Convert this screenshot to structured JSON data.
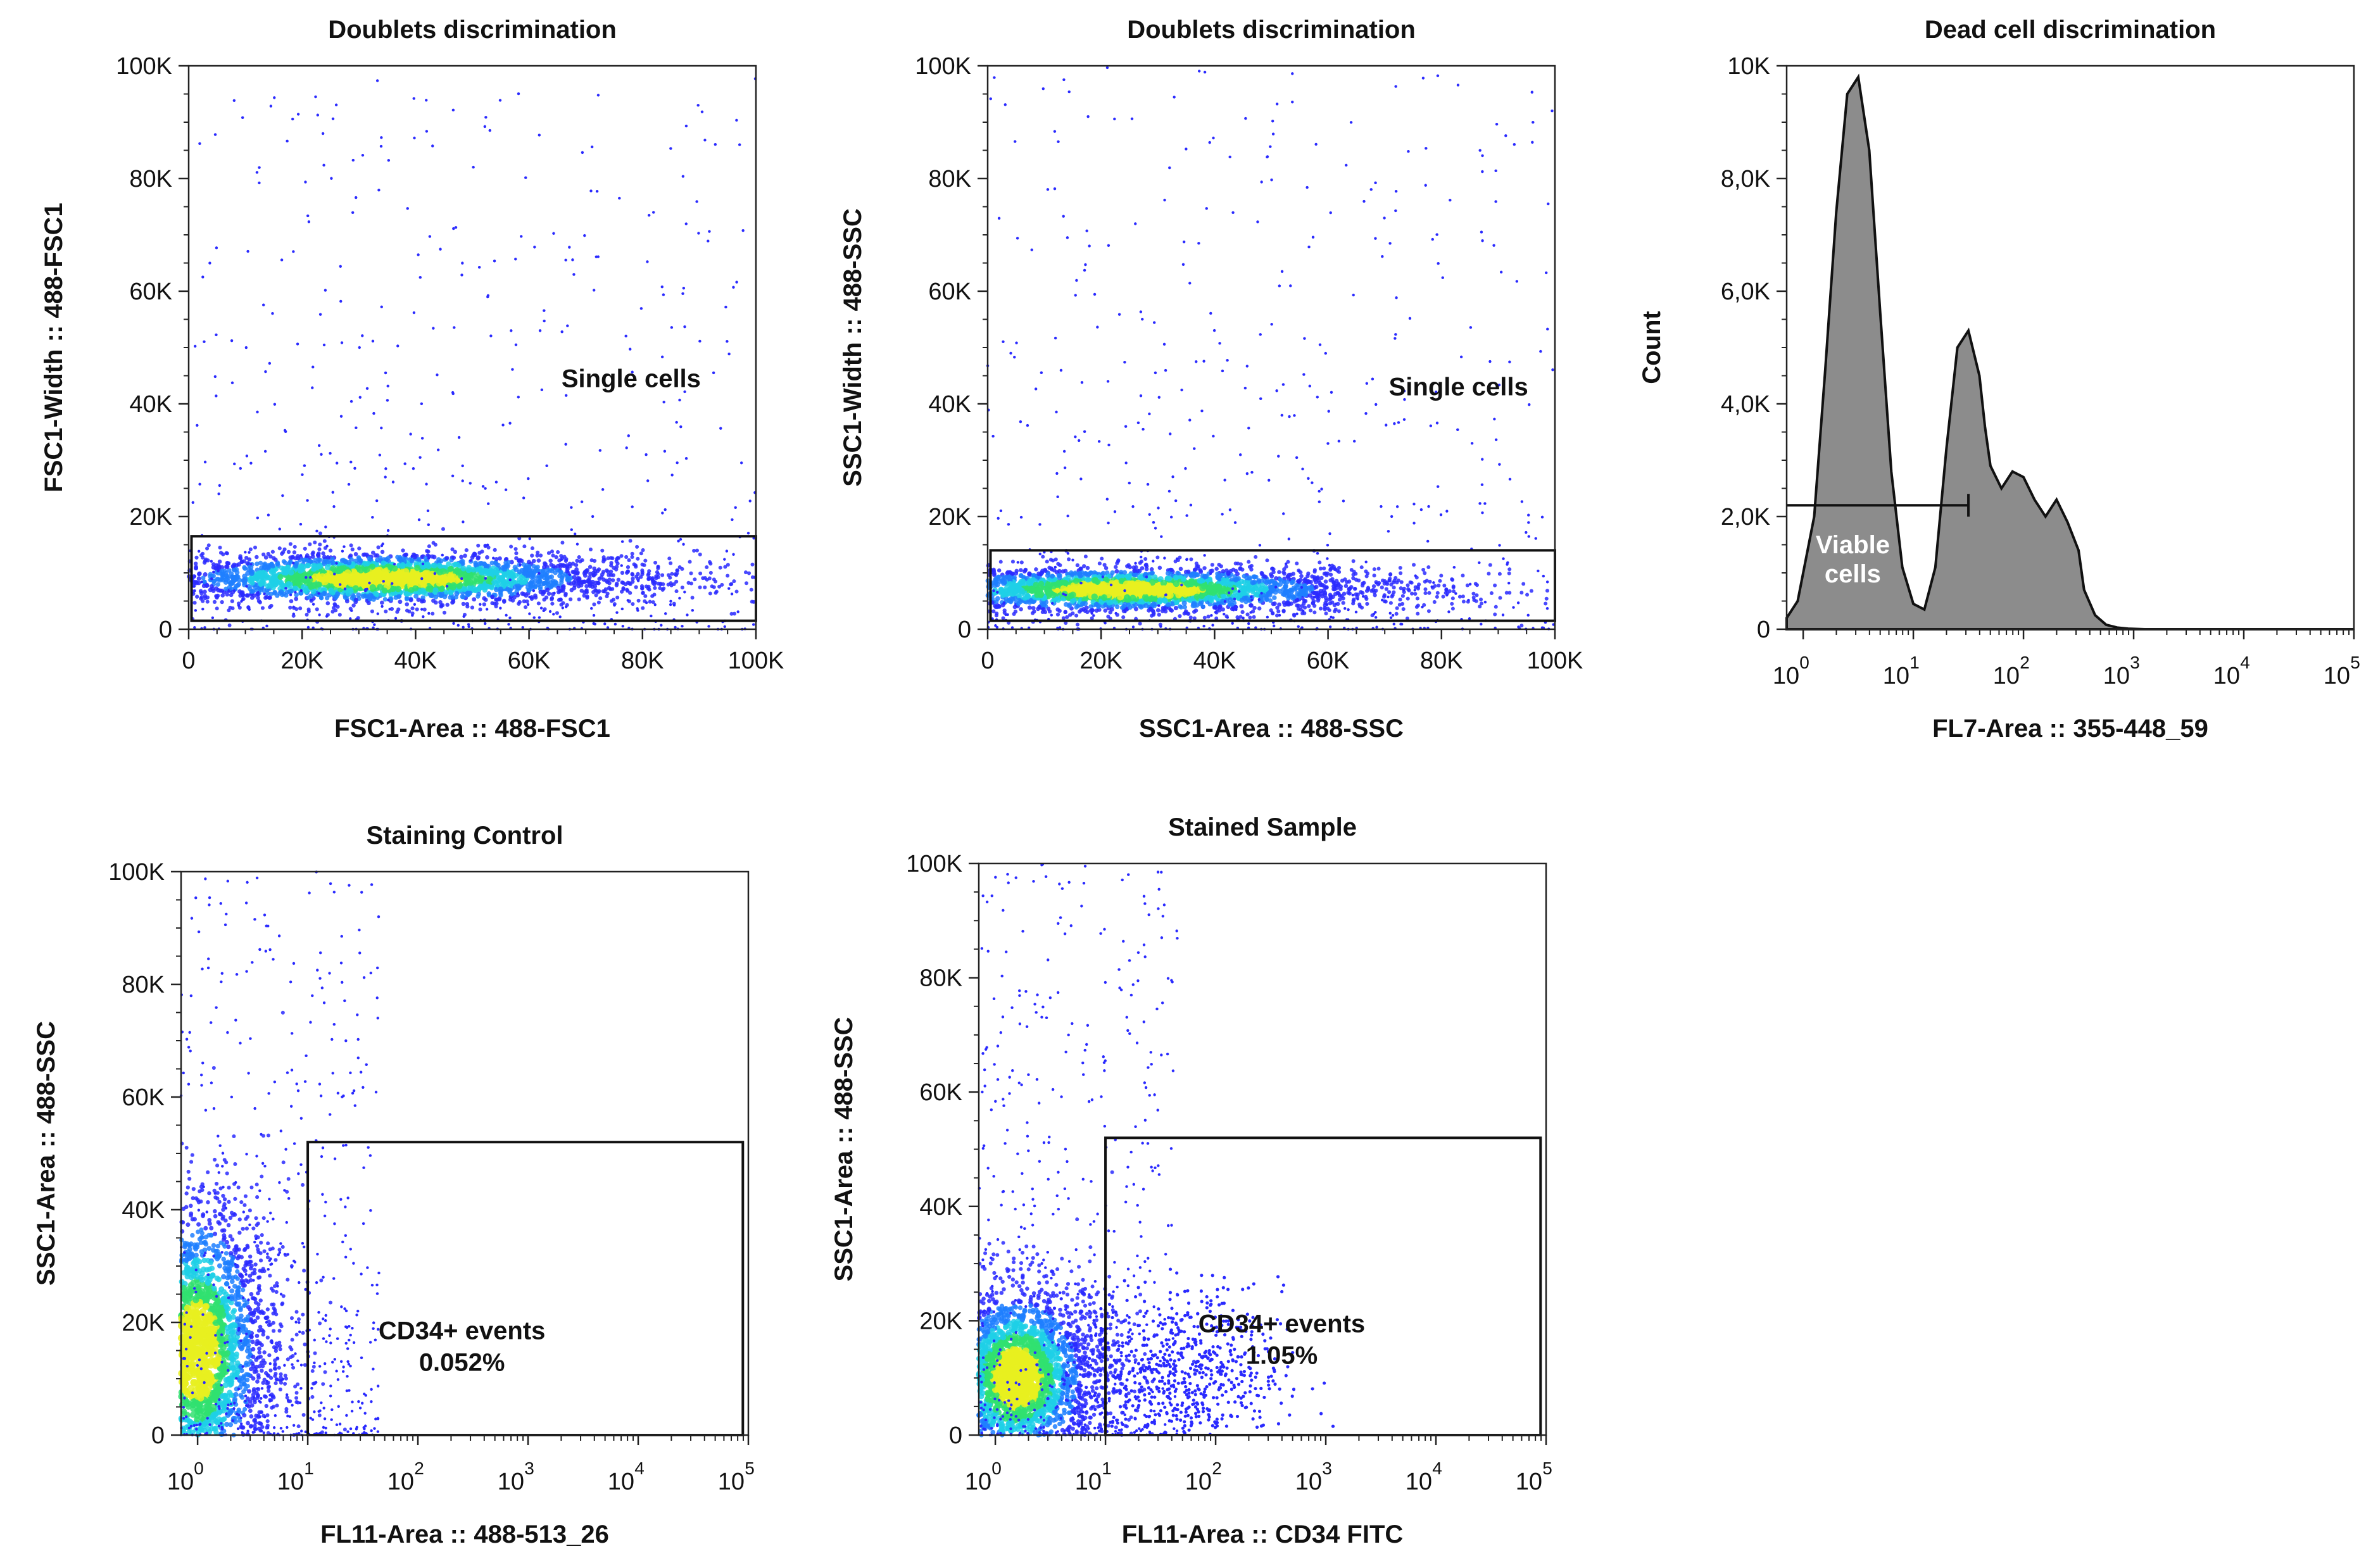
{
  "figure": {
    "background": "#ffffff",
    "density_colors": [
      "#2a2aff",
      "#1f7fff",
      "#1fd0e6",
      "#30e070",
      "#e8f020"
    ]
  },
  "chart_data": [
    {
      "id": "p1",
      "type": "scatter",
      "title": "Doublets discrimination",
      "xlabel": "FSC1-Area :: 488-FSC1",
      "ylabel": "FSC1-Width :: 488-FSC1",
      "x_scale": "linear",
      "y_scale": "linear",
      "xlim": [
        0,
        100000
      ],
      "ylim": [
        0,
        100000
      ],
      "x_ticks": [
        {
          "v": 0,
          "label": "0"
        },
        {
          "v": 20000,
          "label": "20K"
        },
        {
          "v": 40000,
          "label": "40K"
        },
        {
          "v": 60000,
          "label": "60K"
        },
        {
          "v": 80000,
          "label": "80K"
        },
        {
          "v": 100000,
          "label": "100K"
        }
      ],
      "y_ticks": [
        {
          "v": 0,
          "label": "0"
        },
        {
          "v": 20000,
          "label": "20K"
        },
        {
          "v": 40000,
          "label": "40K"
        },
        {
          "v": 60000,
          "label": "60K"
        },
        {
          "v": 80000,
          "label": "80K"
        },
        {
          "v": 100000,
          "label": "100K"
        }
      ],
      "gate": {
        "name": "Single cells",
        "type": "rectangle",
        "x": [
          500,
          100000
        ],
        "y": [
          1500,
          16500
        ]
      },
      "gate_label": "Single cells",
      "gate_label_pos": [
        78000,
        43000
      ],
      "population": {
        "x_center": 35000,
        "y_center": 9000,
        "x_spread": 30000,
        "y_spread": 3500
      }
    },
    {
      "id": "p2",
      "type": "scatter",
      "title": "Doublets discrimination",
      "xlabel": "SSC1-Area :: 488-SSC",
      "ylabel": "SSC1-Width :: 488-SSC",
      "x_scale": "linear",
      "y_scale": "linear",
      "xlim": [
        0,
        100000
      ],
      "ylim": [
        0,
        100000
      ],
      "x_ticks": [
        {
          "v": 0,
          "label": "0"
        },
        {
          "v": 20000,
          "label": "20K"
        },
        {
          "v": 40000,
          "label": "40K"
        },
        {
          "v": 60000,
          "label": "60K"
        },
        {
          "v": 80000,
          "label": "80K"
        },
        {
          "v": 100000,
          "label": "100K"
        }
      ],
      "y_ticks": [
        {
          "v": 0,
          "label": "0"
        },
        {
          "v": 20000,
          "label": "20K"
        },
        {
          "v": 40000,
          "label": "40K"
        },
        {
          "v": 60000,
          "label": "60K"
        },
        {
          "v": 80000,
          "label": "80K"
        },
        {
          "v": 100000,
          "label": "100K"
        }
      ],
      "gate": {
        "name": "Single cells",
        "type": "rectangle",
        "x": [
          500,
          100000
        ],
        "y": [
          1500,
          14000
        ]
      },
      "gate_label": "Single cells",
      "gate_label_pos": [
        83000,
        41500
      ],
      "population": {
        "x_center": 25000,
        "y_center": 7000,
        "x_spread": 30000,
        "y_spread": 3000
      }
    },
    {
      "id": "p3",
      "type": "area",
      "title": "Dead cell discrimination",
      "xlabel": "FL7-Area :: 355-448_59",
      "ylabel": "Count",
      "x_scale": "log",
      "y_scale": "linear",
      "xlim": [
        -0.15,
        5
      ],
      "ylim": [
        0,
        10000
      ],
      "x_ticks": [
        {
          "v": 0,
          "base": "10",
          "exp": "0"
        },
        {
          "v": 1,
          "base": "10",
          "exp": "1"
        },
        {
          "v": 2,
          "base": "10",
          "exp": "2"
        },
        {
          "v": 3,
          "base": "10",
          "exp": "3"
        },
        {
          "v": 4,
          "base": "10",
          "exp": "4"
        },
        {
          "v": 5,
          "base": "10",
          "exp": "5"
        }
      ],
      "y_ticks": [
        {
          "v": 0,
          "label": "0"
        },
        {
          "v": 2000,
          "label": "2,0K"
        },
        {
          "v": 4000,
          "label": "4,0K"
        },
        {
          "v": 6000,
          "label": "6,0K"
        },
        {
          "v": 8000,
          "label": "8,0K"
        },
        {
          "v": 10000,
          "label": "10K"
        }
      ],
      "x": [
        -0.15,
        -0.05,
        0.1,
        0.2,
        0.3,
        0.4,
        0.5,
        0.6,
        0.7,
        0.8,
        0.9,
        1.0,
        1.1,
        1.2,
        1.3,
        1.4,
        1.5,
        1.6,
        1.65,
        1.7,
        1.8,
        1.9,
        2.0,
        2.1,
        2.2,
        2.3,
        2.4,
        2.5,
        2.55,
        2.65,
        2.75,
        2.85,
        2.95,
        3.1,
        3.5,
        4.0,
        4.5,
        5.0
      ],
      "values": [
        200,
        500,
        2000,
        4600,
        7400,
        9500,
        9800,
        8500,
        5600,
        2800,
        1100,
        450,
        350,
        1100,
        3200,
        5000,
        5300,
        4500,
        3600,
        2900,
        2500,
        2800,
        2700,
        2300,
        2000,
        2300,
        1900,
        1400,
        700,
        250,
        80,
        30,
        10,
        0,
        0,
        0,
        0,
        0
      ],
      "fill_color": "#8c8c8c",
      "gate": {
        "name": "Viable cells",
        "type": "range",
        "x": [
          -0.15,
          1.5
        ],
        "y_level": 2200
      },
      "gate_label_lines": [
        "Viable",
        "cells"
      ]
    },
    {
      "id": "p4",
      "type": "scatter",
      "title": "Staining Control",
      "xlabel": "FL11-Area :: 488-513_26",
      "ylabel": "SSC1-Area :: 488-SSC",
      "x_scale": "log",
      "y_scale": "linear",
      "xlim": [
        -0.15,
        5
      ],
      "ylim": [
        0,
        100000
      ],
      "x_ticks": [
        {
          "v": 0,
          "base": "10",
          "exp": "0"
        },
        {
          "v": 1,
          "base": "10",
          "exp": "1"
        },
        {
          "v": 2,
          "base": "10",
          "exp": "2"
        },
        {
          "v": 3,
          "base": "10",
          "exp": "3"
        },
        {
          "v": 4,
          "base": "10",
          "exp": "4"
        },
        {
          "v": 5,
          "base": "10",
          "exp": "5"
        }
      ],
      "y_ticks": [
        {
          "v": 0,
          "label": "0"
        },
        {
          "v": 20000,
          "label": "20K"
        },
        {
          "v": 40000,
          "label": "40K"
        },
        {
          "v": 60000,
          "label": "60K"
        },
        {
          "v": 80000,
          "label": "80K"
        },
        {
          "v": 100000,
          "label": "100K"
        }
      ],
      "gate": {
        "name": "CD34+ events",
        "type": "rectangle",
        "x": [
          1.0,
          4.95
        ],
        "y": [
          0,
          52000
        ],
        "percent": "0.052%"
      },
      "gate_label_lines": [
        "CD34+ events",
        "0.052%"
      ],
      "gate_label_pos": [
        2.4,
        17000
      ],
      "population": {
        "x_center": 0.0,
        "y_center": 15000,
        "x_spread": 0.45,
        "y_spread": 20000
      }
    },
    {
      "id": "p5",
      "type": "scatter",
      "title": "Stained Sample",
      "xlabel": "FL11-Area :: CD34 FITC",
      "ylabel": "SSC1-Area :: 488-SSC",
      "x_scale": "log",
      "y_scale": "linear",
      "xlim": [
        -0.15,
        5
      ],
      "ylim": [
        0,
        100000
      ],
      "x_ticks": [
        {
          "v": 0,
          "base": "10",
          "exp": "0"
        },
        {
          "v": 1,
          "base": "10",
          "exp": "1"
        },
        {
          "v": 2,
          "base": "10",
          "exp": "2"
        },
        {
          "v": 3,
          "base": "10",
          "exp": "3"
        },
        {
          "v": 4,
          "base": "10",
          "exp": "4"
        },
        {
          "v": 5,
          "base": "10",
          "exp": "5"
        }
      ],
      "y_ticks": [
        {
          "v": 0,
          "label": "0"
        },
        {
          "v": 20000,
          "label": "20K"
        },
        {
          "v": 40000,
          "label": "40K"
        },
        {
          "v": 60000,
          "label": "60K"
        },
        {
          "v": 80000,
          "label": "80K"
        },
        {
          "v": 100000,
          "label": "100K"
        }
      ],
      "gate": {
        "name": "CD34+ events",
        "type": "rectangle",
        "x": [
          1.0,
          4.95
        ],
        "y": [
          0,
          52000
        ],
        "percent": "1.05%"
      },
      "gate_label_lines": [
        "CD34+ events",
        "1.05%"
      ],
      "gate_label_pos": [
        2.6,
        18000
      ],
      "population": {
        "x_center": 0.2,
        "y_center": 10000,
        "x_spread": 0.5,
        "y_spread": 12000
      },
      "positive_population": {
        "x_center": 1.7,
        "y_center": 11000,
        "x_spread": 0.45,
        "y_spread": 7000
      }
    }
  ]
}
